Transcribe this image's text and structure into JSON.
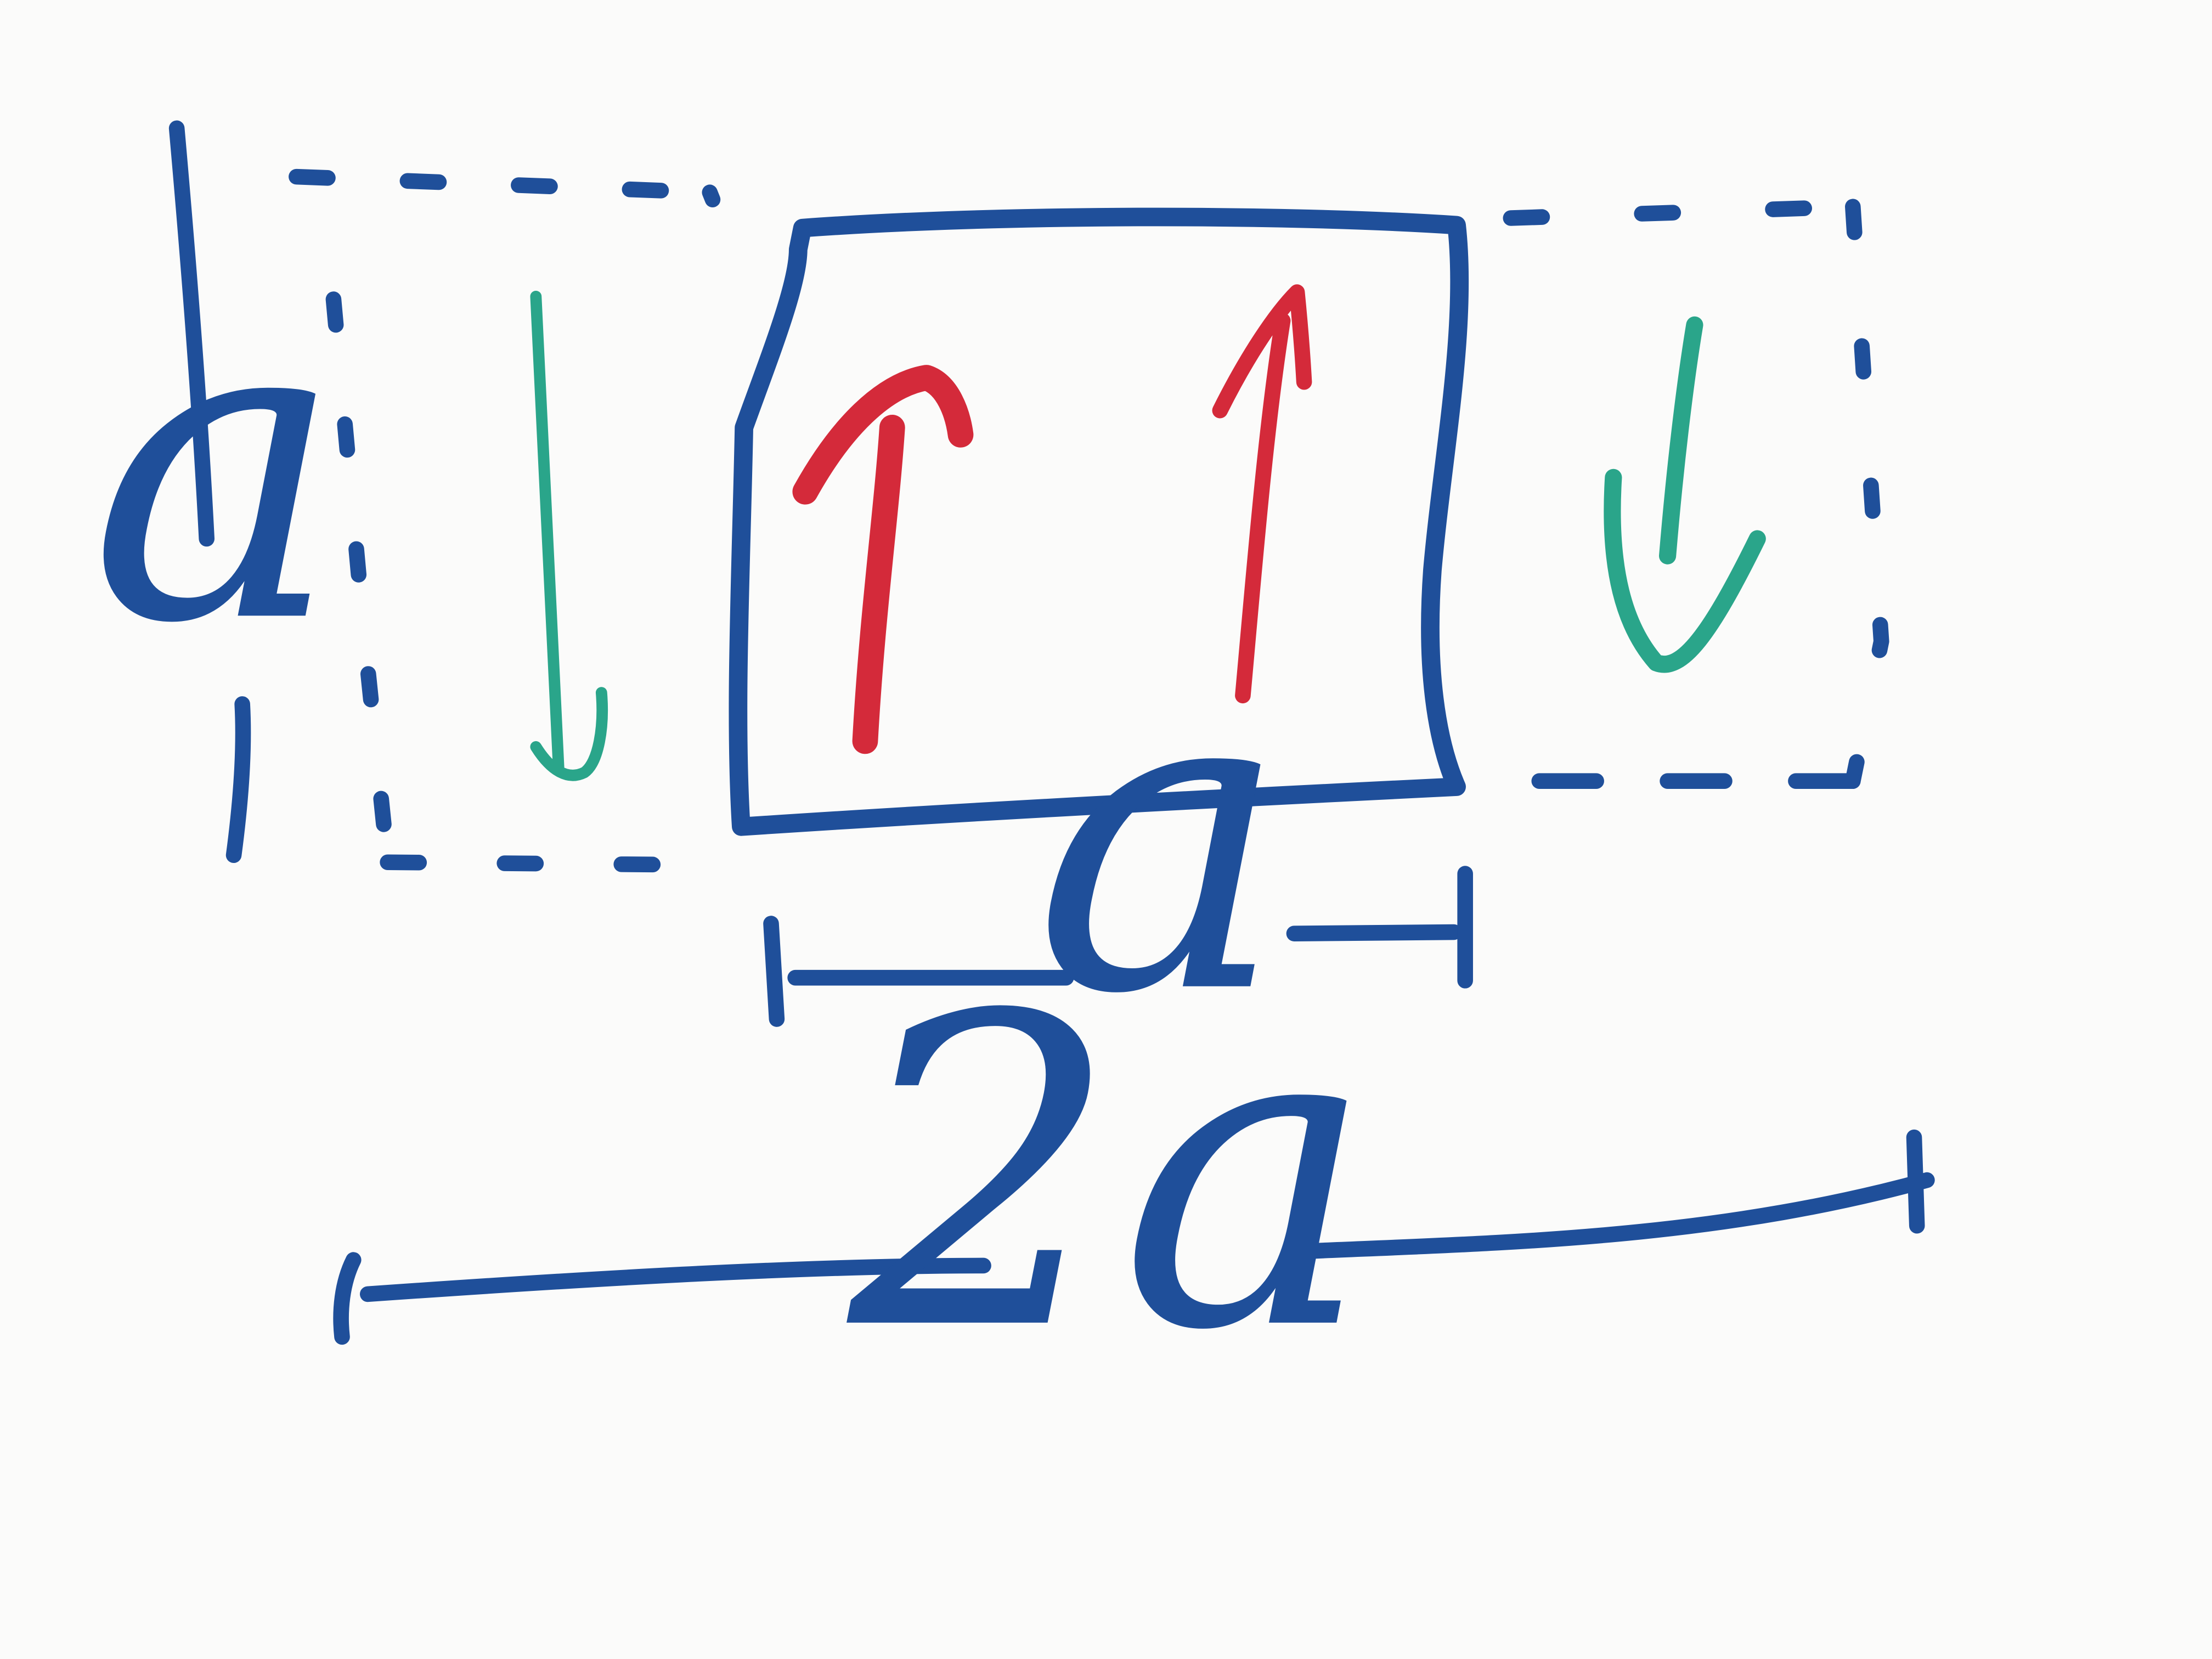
{
  "labels": {
    "height": "a",
    "inner_width": "a",
    "total_width": "2a"
  },
  "colors": {
    "marker_blue": "#1f4f9a",
    "marker_red": "#d42a3a",
    "marker_green": "#2aa58a",
    "board": "#fbfbfa"
  }
}
